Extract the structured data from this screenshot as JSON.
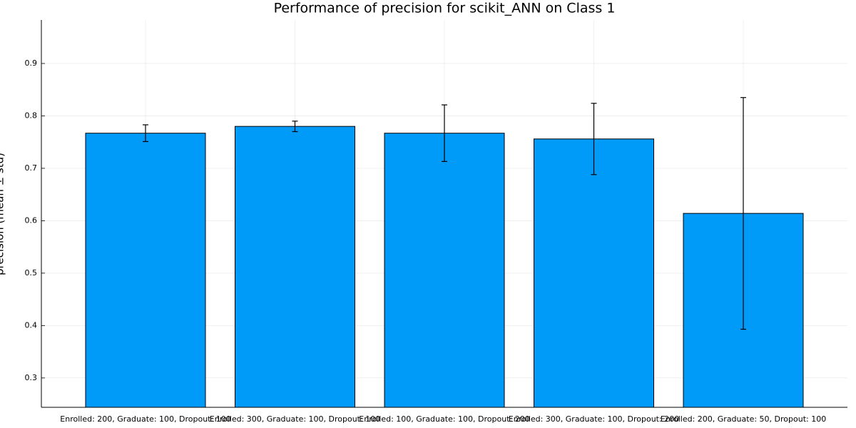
{
  "chart_data": {
    "type": "bar",
    "title": "Performance of precision for scikit_ANN on Class 1",
    "y_label": "precision (mean ± std)",
    "categories": [
      "Enrolled: 200, Graduate: 100, Dropout: 100",
      "Enrolled: 300, Graduate: 100, Dropout: 100",
      "Enrolled: 100, Graduate: 100, Dropout: 200",
      "Enrolled: 300, Graduate: 100, Dropout: 200",
      "Enrolled: 200, Graduate: 50, Dropout: 100"
    ],
    "values": [
      0.767,
      0.78,
      0.767,
      0.756,
      0.614
    ],
    "errors": [
      0.016,
      0.01,
      0.054,
      0.068,
      0.221
    ],
    "color": "#009af9",
    "ylim": [
      0.244,
      0.983
    ],
    "yticks": [
      0.3,
      0.4,
      0.5,
      0.6,
      0.7,
      0.8,
      0.9
    ],
    "grid": true
  }
}
